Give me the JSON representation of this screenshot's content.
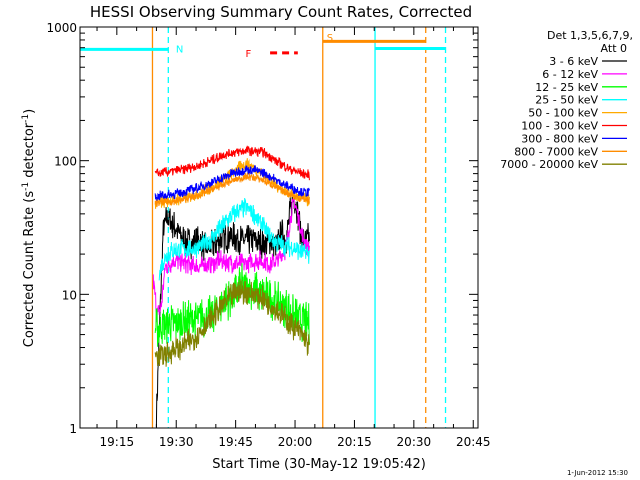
{
  "chart_data": {
    "type": "line",
    "title": "HESSI Observing Summary Count Rates, Corrected",
    "xlabel": "Start Time (30-May-12 19:05:42)",
    "ylabel": "Corrected Count Rate (s",
    "ylabel_sup": "-1",
    "ylabel_tail": " detector",
    "ylabel_sup2": "-1",
    "ylabel_end": ")",
    "yscale": "log",
    "ylim": [
      1,
      1000
    ],
    "xlim_minutes": [
      0,
      100.5
    ],
    "x_ticks": [
      {
        "label": "19:15",
        "m": 9.3
      },
      {
        "label": "19:30",
        "m": 24.3
      },
      {
        "label": "19:45",
        "m": 39.3
      },
      {
        "label": "20:00",
        "m": 54.3
      },
      {
        "label": "20:15",
        "m": 69.3
      },
      {
        "label": "20:30",
        "m": 84.3
      },
      {
        "label": "20:45",
        "m": 99.3
      }
    ],
    "y_ticks": [
      {
        "label": "1",
        "v": 1
      },
      {
        "label": "10",
        "v": 10
      },
      {
        "label": "100",
        "v": 100
      },
      {
        "label": "1000",
        "v": 1000
      }
    ],
    "legend_header": [
      "Det 1,3,5,6,7,9,",
      "Att 0"
    ],
    "legend_position": "right",
    "series": [
      {
        "name": "3 - 6 keV",
        "color": "#000000",
        "points": [
          [
            19.3,
            1.2
          ],
          [
            20,
            5
          ],
          [
            21,
            30
          ],
          [
            22,
            38
          ],
          [
            24,
            32
          ],
          [
            26,
            26
          ],
          [
            28,
            24
          ],
          [
            30,
            25
          ],
          [
            32,
            22
          ],
          [
            34,
            24
          ],
          [
            36,
            26
          ],
          [
            38,
            27
          ],
          [
            40,
            26
          ],
          [
            42,
            25
          ],
          [
            44,
            26
          ],
          [
            46,
            24
          ],
          [
            48,
            25
          ],
          [
            50,
            24
          ],
          [
            51,
            30
          ],
          [
            52,
            25
          ],
          [
            53,
            40
          ],
          [
            54,
            55
          ],
          [
            55,
            40
          ],
          [
            56,
            26
          ],
          [
            57,
            24
          ],
          [
            58,
            28
          ]
        ],
        "noise": 0.12
      },
      {
        "name": "6 - 12 keV",
        "color": "#ff00ff",
        "points": [
          [
            18.5,
            13
          ],
          [
            19.5,
            7
          ],
          [
            20.5,
            8
          ],
          [
            21.5,
            16
          ],
          [
            24,
            18
          ],
          [
            27,
            17
          ],
          [
            30,
            16
          ],
          [
            33,
            17
          ],
          [
            36,
            18
          ],
          [
            39,
            17
          ],
          [
            42,
            17
          ],
          [
            45,
            18
          ],
          [
            48,
            17
          ],
          [
            50,
            18
          ],
          [
            52,
            22
          ],
          [
            53,
            35
          ],
          [
            54,
            50
          ],
          [
            55,
            40
          ],
          [
            56,
            28
          ],
          [
            57,
            24
          ],
          [
            58,
            22
          ]
        ],
        "noise": 0.08
      },
      {
        "name": "12 - 25 keV",
        "color": "#00ff00",
        "points": [
          [
            19,
            5.5
          ],
          [
            21,
            6
          ],
          [
            24,
            6
          ],
          [
            27,
            6.3
          ],
          [
            30,
            6.5
          ],
          [
            33,
            7
          ],
          [
            36,
            8.5
          ],
          [
            39,
            10
          ],
          [
            41,
            12
          ],
          [
            43,
            11
          ],
          [
            46,
            10
          ],
          [
            49,
            9
          ],
          [
            52,
            8
          ],
          [
            55,
            6.5
          ],
          [
            58,
            6
          ]
        ],
        "noise": 0.16
      },
      {
        "name": "25 - 50 keV",
        "color": "#00ffff",
        "points": [
          [
            20,
            14
          ],
          [
            21,
            18
          ],
          [
            23,
            21
          ],
          [
            26,
            22
          ],
          [
            29,
            22
          ],
          [
            32,
            24
          ],
          [
            35,
            30
          ],
          [
            38,
            38
          ],
          [
            40,
            42
          ],
          [
            42,
            45
          ],
          [
            44,
            40
          ],
          [
            46,
            33
          ],
          [
            48,
            27
          ],
          [
            50,
            24
          ],
          [
            52,
            23
          ],
          [
            54,
            22
          ],
          [
            56,
            21
          ],
          [
            58,
            20
          ]
        ],
        "noise": 0.08
      },
      {
        "name": "50 - 100 keV",
        "color": "#ffaa00",
        "points": [
          [
            19,
            48
          ],
          [
            22,
            50
          ],
          [
            26,
            52
          ],
          [
            30,
            57
          ],
          [
            34,
            65
          ],
          [
            38,
            78
          ],
          [
            40,
            88
          ],
          [
            42,
            96
          ],
          [
            44,
            88
          ],
          [
            46,
            80
          ],
          [
            48,
            72
          ],
          [
            50,
            64
          ],
          [
            52,
            58
          ],
          [
            54,
            55
          ],
          [
            56,
            52
          ],
          [
            58,
            50
          ]
        ],
        "noise": 0.05
      },
      {
        "name": "100 - 300 keV",
        "color": "#ff0000",
        "points": [
          [
            19,
            80
          ],
          [
            22,
            82
          ],
          [
            26,
            86
          ],
          [
            30,
            92
          ],
          [
            34,
            103
          ],
          [
            37,
            112
          ],
          [
            40,
            117
          ],
          [
            42,
            119
          ],
          [
            44,
            118
          ],
          [
            46,
            116
          ],
          [
            48,
            108
          ],
          [
            50,
            98
          ],
          [
            52,
            90
          ],
          [
            55,
            82
          ],
          [
            58,
            78
          ]
        ],
        "noise": 0.04
      },
      {
        "name": "300 - 800 keV",
        "color": "#0000ff",
        "points": [
          [
            19,
            54
          ],
          [
            22,
            55
          ],
          [
            26,
            58
          ],
          [
            30,
            63
          ],
          [
            34,
            70
          ],
          [
            37,
            77
          ],
          [
            40,
            83
          ],
          [
            42,
            86
          ],
          [
            44,
            85
          ],
          [
            46,
            82
          ],
          [
            48,
            76
          ],
          [
            50,
            70
          ],
          [
            52,
            65
          ],
          [
            55,
            60
          ],
          [
            58,
            57
          ]
        ],
        "noise": 0.04
      },
      {
        "name": "800 - 7000 keV",
        "color": "#ff8c00",
        "points": [
          [
            19,
            48
          ],
          [
            22,
            49
          ],
          [
            26,
            51
          ],
          [
            30,
            55
          ],
          [
            34,
            62
          ],
          [
            37,
            68
          ],
          [
            40,
            73
          ],
          [
            42,
            76
          ],
          [
            44,
            75
          ],
          [
            46,
            72
          ],
          [
            48,
            67
          ],
          [
            50,
            62
          ],
          [
            52,
            58
          ],
          [
            55,
            53
          ],
          [
            58,
            50
          ]
        ],
        "noise": 0.03
      },
      {
        "name": "7000 - 20000 keV",
        "color": "#808000",
        "points": [
          [
            19,
            3.5
          ],
          [
            22,
            3.6
          ],
          [
            25,
            4
          ],
          [
            28,
            4.5
          ],
          [
            31,
            5.5
          ],
          [
            34,
            7
          ],
          [
            37,
            9
          ],
          [
            40,
            10.5
          ],
          [
            42,
            10.5
          ],
          [
            44,
            10
          ],
          [
            47,
            9
          ],
          [
            50,
            7.5
          ],
          [
            53,
            6
          ],
          [
            56,
            5
          ],
          [
            58,
            4
          ]
        ],
        "noise": 0.1
      }
    ],
    "vlines": [
      {
        "m": 18.3,
        "color": "#ff8c00",
        "dash": false
      },
      {
        "m": 22.3,
        "color": "#00ffff",
        "dash": true
      },
      {
        "m": 61.3,
        "color": "#ff8c00",
        "dash": false
      },
      {
        "m": 74.5,
        "color": "#00ffff",
        "dash": false
      },
      {
        "m": 87.3,
        "color": "#ff8c00",
        "dash": true
      },
      {
        "m": 92.3,
        "color": "#00ffff",
        "dash": true
      }
    ],
    "hbars": [
      {
        "m0": 0,
        "m1": 22.3,
        "v": 680,
        "color": "#00ffff",
        "dash": false
      },
      {
        "m0": 61.3,
        "m1": 87.3,
        "v": 780,
        "color": "#ff8c00",
        "dash": false
      },
      {
        "m0": 74.5,
        "m1": 92.3,
        "v": 690,
        "color": "#00ffff",
        "dash": false
      },
      {
        "m0": 48,
        "m1": 55,
        "v": 640,
        "color": "#ff0000",
        "dash": true
      }
    ],
    "markers": [
      {
        "label": "N",
        "m": 23.2,
        "v": 690,
        "color": "#00ffff"
      },
      {
        "label": "S",
        "m": 61.3,
        "v": 840,
        "color": "#ff8c00"
      },
      {
        "label": "F",
        "m": 44.5,
        "v": 640,
        "color": "#ff0000"
      }
    ]
  },
  "footer_date": "1-Jun-2012 15:30"
}
